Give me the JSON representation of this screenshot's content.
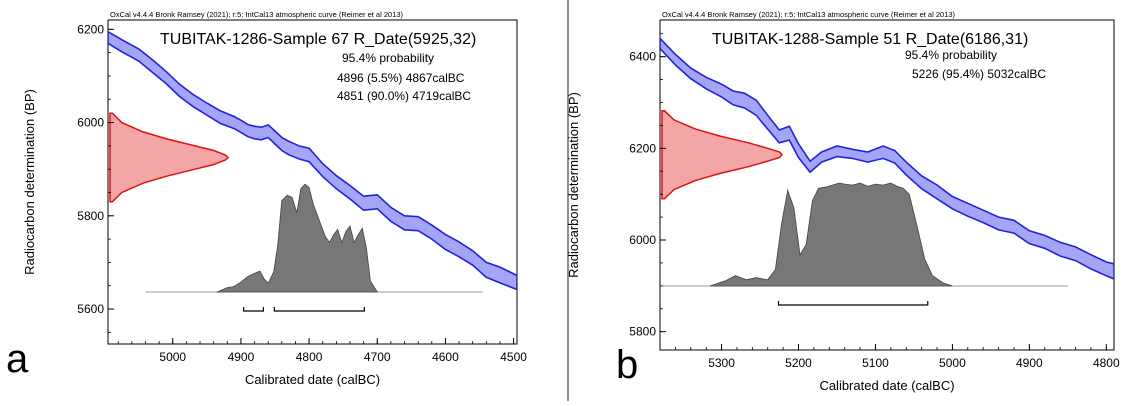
{
  "chart_data": [
    {
      "type": "area",
      "panel_letter": "a",
      "software_credit": "OxCal v4.4.4 Bronk Ramsey (2021); r:5; IntCal13 atmospheric curve (Reimer et al 2013)",
      "title": "TUBITAK-1286-Sample 67 R_Date(5925,32)",
      "probability_label": "95.4% probability",
      "ranges_text": [
        "4896 (5.5%) 4867calBC",
        "4851 (90.0%) 4719calBC"
      ],
      "xlabel": "Calibrated date (calBC)",
      "ylabel": "Radiocarbon determination (BP)",
      "x_reversed": true,
      "xlim": [
        5095,
        4495
      ],
      "ylim": [
        5525,
        6220
      ],
      "x_ticks": [
        5000,
        4900,
        4800,
        4700,
        4600,
        4500
      ],
      "y_ticks": [
        5600,
        5800,
        6000,
        6200
      ],
      "calibration_curve": {
        "color": "#5b5bef",
        "x": [
          5095,
          5075,
          5050,
          5030,
          5010,
          4990,
          4970,
          4950,
          4930,
          4910,
          4900,
          4890,
          4880,
          4870,
          4860,
          4850,
          4840,
          4830,
          4815,
          4800,
          4780,
          4760,
          4740,
          4720,
          4700,
          4680,
          4660,
          4640,
          4620,
          4600,
          4580,
          4560,
          4540,
          4520,
          4495
        ],
        "upper": [
          6195,
          6178,
          6158,
          6135,
          6110,
          6082,
          6060,
          6042,
          6025,
          6013,
          6005,
          5996,
          5992,
          5990,
          5995,
          5982,
          5968,
          5960,
          5950,
          5945,
          5912,
          5886,
          5865,
          5842,
          5845,
          5818,
          5800,
          5798,
          5780,
          5760,
          5744,
          5725,
          5700,
          5690,
          5672
        ],
        "lower": [
          6170,
          6152,
          6132,
          6108,
          6084,
          6056,
          6034,
          6016,
          5998,
          5987,
          5979,
          5970,
          5965,
          5963,
          5968,
          5954,
          5940,
          5931,
          5922,
          5916,
          5884,
          5858,
          5836,
          5812,
          5815,
          5788,
          5770,
          5768,
          5750,
          5728,
          5712,
          5694,
          5668,
          5656,
          5642
        ]
      },
      "measured_date_distribution": {
        "color": "#f08080",
        "bp": [
          5830,
          5850,
          5870,
          5885,
          5900,
          5910,
          5920,
          5925,
          5930,
          5940,
          5950,
          5965,
          5980,
          6000,
          6020
        ],
        "density": [
          0.02,
          0.1,
          0.28,
          0.48,
          0.72,
          0.88,
          0.98,
          1.0,
          0.98,
          0.88,
          0.72,
          0.48,
          0.28,
          0.1,
          0.02
        ]
      },
      "calibrated_distribution": {
        "color": "#777777",
        "x_from": 5040,
        "x_to": 4545,
        "x": [
          4935,
          4920,
          4910,
          4900,
          4890,
          4880,
          4872,
          4866,
          4860,
          4852,
          4846,
          4840,
          4832,
          4825,
          4818,
          4812,
          4806,
          4800,
          4794,
          4788,
          4782,
          4776,
          4770,
          4764,
          4758,
          4752,
          4746,
          4740,
          4734,
          4728,
          4722,
          4716,
          4710,
          4700
        ],
        "density": [
          0.0,
          0.04,
          0.05,
          0.09,
          0.14,
          0.17,
          0.19,
          0.12,
          0.08,
          0.18,
          0.42,
          0.83,
          0.88,
          0.86,
          0.72,
          0.94,
          0.98,
          0.95,
          0.8,
          0.7,
          0.6,
          0.5,
          0.45,
          0.52,
          0.57,
          0.45,
          0.55,
          0.6,
          0.45,
          0.52,
          0.58,
          0.4,
          0.1,
          0.0
        ]
      },
      "range_brackets": [
        [
          4896,
          4867
        ],
        [
          4851,
          4719
        ]
      ]
    },
    {
      "type": "area",
      "panel_letter": "b",
      "software_credit": "OxCal v4.4.4 Bronk Ramsey (2021); r:5; IntCal13 atmospheric curve (Reimer et al 2013)",
      "title": "TUBITAK-1288-Sample 51 R_Date(6186,31)",
      "probability_label": "95.4% probability",
      "ranges_text": [
        "5226 (95.4%) 5032calBC"
      ],
      "xlabel": "Calibrated date (calBC)",
      "ylabel": "Radiocarbon determination (BP)",
      "x_reversed": true,
      "xlim": [
        5380,
        4790
      ],
      "ylim": [
        5760,
        6480
      ],
      "x_ticks": [
        5300,
        5200,
        5100,
        5000,
        4900,
        4800
      ],
      "y_ticks": [
        5800,
        6000,
        6200,
        6400
      ],
      "calibration_curve": {
        "color": "#5b5bef",
        "x": [
          5380,
          5360,
          5340,
          5320,
          5300,
          5285,
          5270,
          5255,
          5240,
          5225,
          5212,
          5200,
          5185,
          5170,
          5150,
          5130,
          5110,
          5090,
          5075,
          5060,
          5040,
          5020,
          5000,
          4980,
          4960,
          4940,
          4920,
          4900,
          4880,
          4860,
          4840,
          4820,
          4800,
          4790
        ],
        "upper": [
          6440,
          6405,
          6375,
          6355,
          6340,
          6325,
          6320,
          6305,
          6272,
          6240,
          6248,
          6210,
          6172,
          6192,
          6205,
          6198,
          6192,
          6205,
          6195,
          6170,
          6140,
          6120,
          6095,
          6080,
          6065,
          6050,
          6043,
          6020,
          6010,
          5995,
          5985,
          5968,
          5952,
          5948
        ],
        "lower": [
          6418,
          6382,
          6352,
          6330,
          6312,
          6295,
          6288,
          6272,
          6242,
          6212,
          6218,
          6180,
          6148,
          6170,
          6182,
          6178,
          6170,
          6178,
          6168,
          6142,
          6112,
          6090,
          6068,
          6052,
          6038,
          6022,
          6015,
          5992,
          5982,
          5965,
          5955,
          5937,
          5922,
          5915
        ]
      },
      "measured_date_distribution": {
        "color": "#f08080",
        "bp": [
          6090,
          6110,
          6130,
          6145,
          6160,
          6172,
          6180,
          6186,
          6192,
          6200,
          6212,
          6227,
          6242,
          6262,
          6282
        ],
        "density": [
          0.02,
          0.1,
          0.28,
          0.48,
          0.72,
          0.88,
          0.98,
          1.0,
          0.98,
          0.88,
          0.72,
          0.48,
          0.28,
          0.1,
          0.02
        ]
      },
      "calibrated_distribution": {
        "color": "#777777",
        "x_from": 5380,
        "x_to": 4850,
        "x": [
          5315,
          5295,
          5282,
          5268,
          5255,
          5240,
          5230,
          5222,
          5214,
          5206,
          5198,
          5190,
          5182,
          5174,
          5165,
          5156,
          5147,
          5140,
          5130,
          5120,
          5110,
          5100,
          5090,
          5080,
          5072,
          5064,
          5056,
          5046,
          5036,
          5026,
          5012,
          5000
        ],
        "density": [
          0.0,
          0.05,
          0.1,
          0.06,
          0.08,
          0.06,
          0.16,
          0.6,
          0.92,
          0.75,
          0.3,
          0.4,
          0.82,
          0.94,
          0.95,
          0.97,
          0.99,
          0.98,
          0.97,
          0.99,
          0.96,
          0.98,
          0.97,
          0.99,
          0.96,
          0.94,
          0.88,
          0.58,
          0.26,
          0.1,
          0.03,
          0.0
        ]
      },
      "range_brackets": [
        [
          5226,
          5032
        ]
      ]
    }
  ]
}
